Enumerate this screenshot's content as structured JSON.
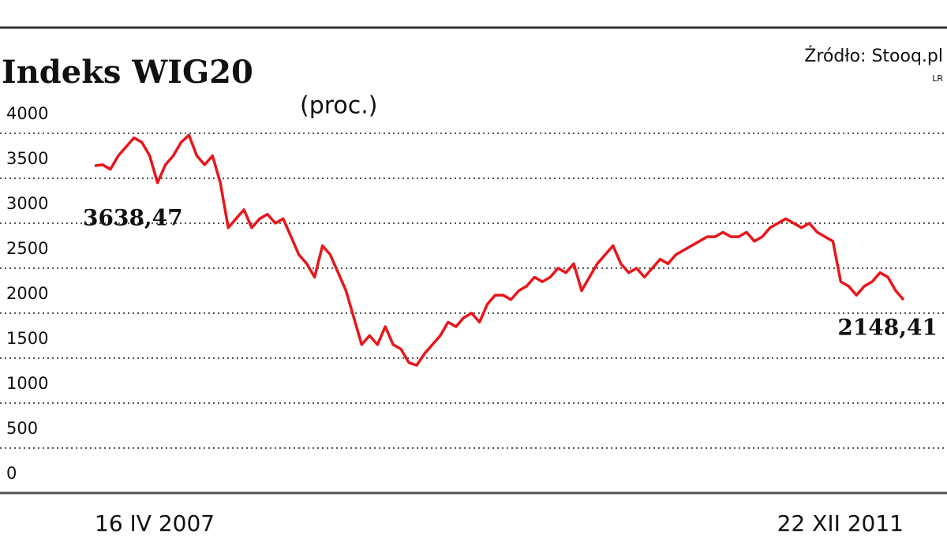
{
  "chart_data": {
    "type": "line",
    "title": "Indeks WIG20",
    "subtitle": "(proc.)",
    "source": "Źródło: Stooq.pl",
    "credit": "LR",
    "categories": [
      "16 IV 2007",
      null,
      null,
      null,
      null,
      null,
      null,
      null,
      null,
      null,
      null,
      null,
      null,
      null,
      null,
      null,
      null,
      null,
      null,
      null,
      null,
      null,
      null,
      null,
      null,
      null,
      null,
      null,
      null,
      null,
      null,
      null,
      null,
      null,
      null,
      null,
      null,
      null,
      null,
      null,
      null,
      null,
      null,
      null,
      null,
      null,
      null,
      null,
      null,
      null,
      null,
      null,
      null,
      null,
      null,
      null,
      null,
      null,
      null,
      null,
      null,
      null,
      null,
      null,
      null,
      null,
      null,
      null,
      null,
      null,
      null,
      null,
      null,
      null,
      null,
      null,
      null,
      null,
      null,
      null,
      null,
      null,
      null,
      null,
      null,
      null,
      null,
      null,
      null,
      null,
      null,
      null,
      null,
      null,
      null,
      null,
      null,
      null,
      null,
      null,
      null,
      null,
      null,
      "22 XII 2011"
    ],
    "series": [
      {
        "name": "WIG20",
        "color": "#e8161b",
        "values": [
          3638.47,
          3650,
          3600,
          3750,
          3850,
          3950,
          3900,
          3750,
          3450,
          3650,
          3750,
          3900,
          3980,
          3750,
          3650,
          3750,
          3450,
          2950,
          3050,
          3150,
          2950,
          3050,
          3100,
          3000,
          3050,
          2850,
          2650,
          2550,
          2400,
          2750,
          2650,
          2450,
          2250,
          1950,
          1650,
          1750,
          1650,
          1850,
          1650,
          1600,
          1450,
          1420,
          1550,
          1650,
          1750,
          1900,
          1850,
          1950,
          2000,
          1900,
          2100,
          2200,
          2200,
          2150,
          2250,
          2300,
          2400,
          2350,
          2400,
          2500,
          2450,
          2550,
          2250,
          2400,
          2550,
          2650,
          2750,
          2550,
          2450,
          2500,
          2400,
          2500,
          2600,
          2550,
          2650,
          2700,
          2750,
          2800,
          2850,
          2850,
          2900,
          2850,
          2850,
          2900,
          2800,
          2850,
          2950,
          3000,
          3050,
          3000,
          2950,
          3000,
          2900,
          2850,
          2800,
          2350,
          2300,
          2200,
          2300,
          2350,
          2450,
          2400,
          2250,
          2148.41
        ],
        "value_labels": [
          "3638,47",
          null,
          null,
          null,
          null,
          null,
          null,
          null,
          null,
          null,
          null,
          null,
          null,
          null,
          null,
          null,
          null,
          null,
          null,
          null,
          null,
          null,
          null,
          null,
          null,
          null,
          null,
          null,
          null,
          null,
          null,
          null,
          null,
          null,
          null,
          null,
          null,
          null,
          null,
          null,
          null,
          null,
          null,
          null,
          null,
          null,
          null,
          null,
          null,
          null,
          null,
          null,
          null,
          null,
          null,
          null,
          null,
          null,
          null,
          null,
          null,
          null,
          null,
          null,
          null,
          null,
          null,
          null,
          null,
          null,
          null,
          null,
          null,
          null,
          null,
          null,
          null,
          null,
          null,
          null,
          null,
          null,
          null,
          null,
          null,
          null,
          null,
          null,
          null,
          null,
          null,
          null,
          null,
          null,
          null,
          null,
          null,
          null,
          null,
          null,
          null,
          null,
          null,
          "2148,41"
        ]
      }
    ],
    "ylim": [
      0,
      4000
    ],
    "yticks": [
      0,
      500,
      1000,
      1500,
      2000,
      2500,
      3000,
      3500,
      4000
    ],
    "grid": true
  }
}
